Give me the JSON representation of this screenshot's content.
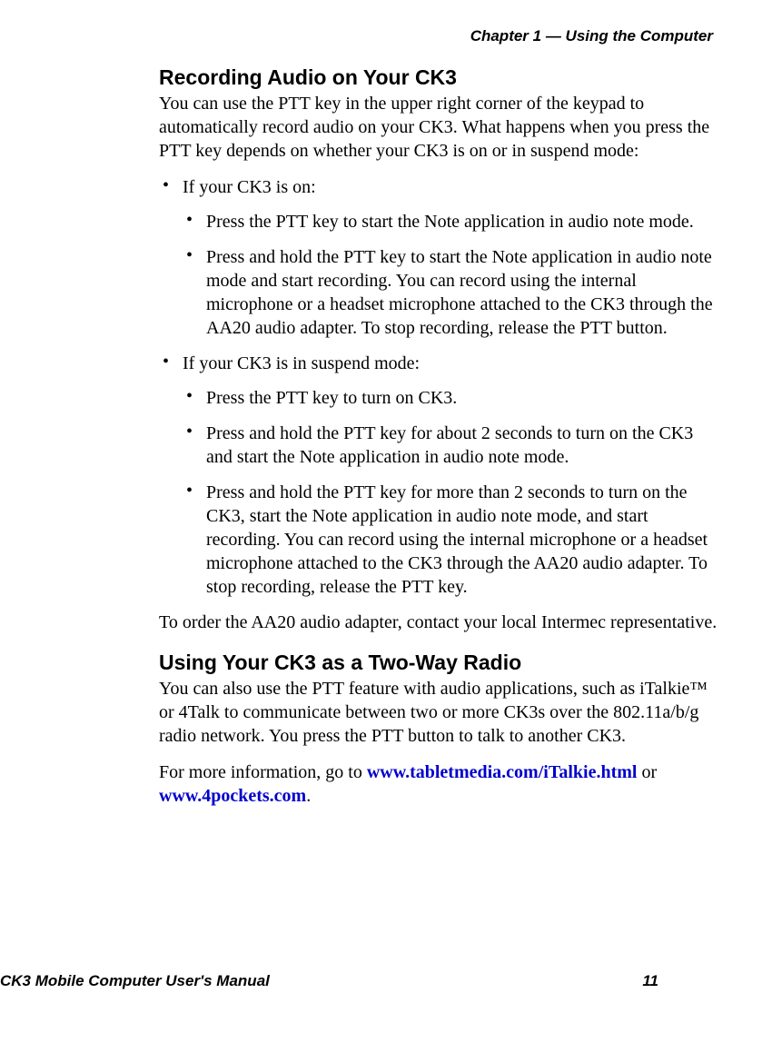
{
  "header": {
    "chapter": "Chapter 1 — Using the Computer"
  },
  "section1": {
    "heading": "Recording Audio on Your CK3",
    "intro": "You can use the PTT key in the upper right corner of the keypad to automatically record audio on your CK3. What happens when you press the PTT key depends on whether your CK3 is on or in suspend mode:",
    "bullet1": "If your CK3 is on:",
    "sub1a": "Press the PTT key to start the Note application in audio note mode.",
    "sub1b": "Press and hold the PTT key to start the Note application in audio note mode and start recording. You can record using the internal microphone or a headset microphone attached to the CK3 through the AA20 audio adapter. To stop recording, release the PTT button.",
    "bullet2": "If your CK3 is in suspend mode:",
    "sub2a": "Press the PTT key to turn on CK3.",
    "sub2b": "Press and hold the PTT key for about 2 seconds to turn on the CK3 and start the Note application in audio note mode.",
    "sub2c": "Press and hold the PTT key for more than 2 seconds to turn on the CK3, start the Note application in audio note mode, and start recording. You can record using the internal microphone or a headset microphone attached to the CK3 through the AA20 audio adapter. To stop recording, release the PTT key.",
    "closing": "To order the AA20 audio adapter, contact your local Intermec representative."
  },
  "section2": {
    "heading": "Using Your CK3 as a Two-Way Radio",
    "intro": "You can also use the PTT feature with audio applications, such as iTalkie™ or 4Talk to communicate between two or more CK3s over the 802.11a/b/g radio network. You press the PTT button to talk to another CK3.",
    "moreinfo_pre": "For more information, go to ",
    "link1": "www.tabletmedia.com/iTalkie.html",
    "or": " or ",
    "link2": "www.4pockets.com",
    "period": "."
  },
  "footer": {
    "title": "CK3 Mobile Computer User's Manual",
    "page": "11"
  }
}
